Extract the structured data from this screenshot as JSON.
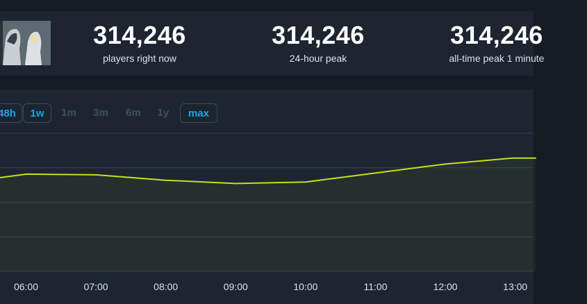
{
  "stats": [
    {
      "value": "314,246",
      "label": "players right now"
    },
    {
      "value": "314,246",
      "label": "24-hour peak"
    },
    {
      "value": "314,246",
      "label": "all-time peak 1 minute"
    }
  ],
  "ranges": [
    {
      "label": "48h",
      "active": true
    },
    {
      "label": "1w",
      "active": true
    },
    {
      "label": "1m",
      "active": false
    },
    {
      "label": "3m",
      "active": false
    },
    {
      "label": "6m",
      "active": false
    },
    {
      "label": "1y",
      "active": false
    },
    {
      "label": "max",
      "active": true
    }
  ],
  "colors": {
    "line": "#c6e01a",
    "accent": "#1aa5e6",
    "panel": "#1e2531",
    "grid": "#334052"
  },
  "chart_data": {
    "type": "line",
    "x_ticks": [
      "06:00",
      "07:00",
      "08:00",
      "09:00",
      "10:00",
      "11:00",
      "12:00",
      "13:00"
    ],
    "x": [
      5.6,
      6.0,
      7.0,
      8.0,
      9.0,
      10.0,
      11.0,
      12.0,
      12.96,
      13.3
    ],
    "y": [
      67.7,
      70.4,
      69.9,
      66.0,
      63.6,
      64.7,
      71.2,
      77.7,
      82.0,
      82.0
    ],
    "ylim": [
      0,
      100
    ],
    "grid": true,
    "area_fill": true
  }
}
